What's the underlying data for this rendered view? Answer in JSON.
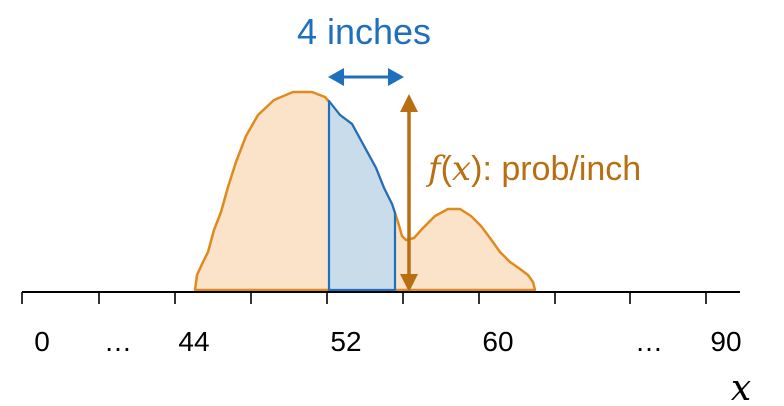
{
  "colors": {
    "density_fill": "#fbe3c9",
    "density_stroke": "#e08a1e",
    "interval_fill": "#c9dcea",
    "interval_stroke": "#1f6fbf",
    "width_annotation": "#1f6fbf",
    "height_annotation": "#b86f12",
    "axis": "#000000"
  },
  "annotations": {
    "width": {
      "label": "4 inches",
      "from": 52,
      "to": 56
    },
    "height": {
      "func": "f",
      "open_paren": "(",
      "var": "x",
      "close_paren": ")",
      "rest": ": prob/inch"
    }
  },
  "axis": {
    "variable": "x",
    "ticks": [
      {
        "value": 0,
        "label": "0"
      },
      {
        "value": "…",
        "label": "…"
      },
      {
        "value": 44,
        "label": "44"
      },
      {
        "value": 52,
        "label": "52"
      },
      {
        "value": 60,
        "label": "60"
      },
      {
        "value": "…",
        "label": "…"
      },
      {
        "value": 90,
        "label": "90"
      }
    ]
  },
  "density": {
    "x_range": [
      46,
      62
    ],
    "shaded_interval": [
      52,
      56
    ]
  }
}
